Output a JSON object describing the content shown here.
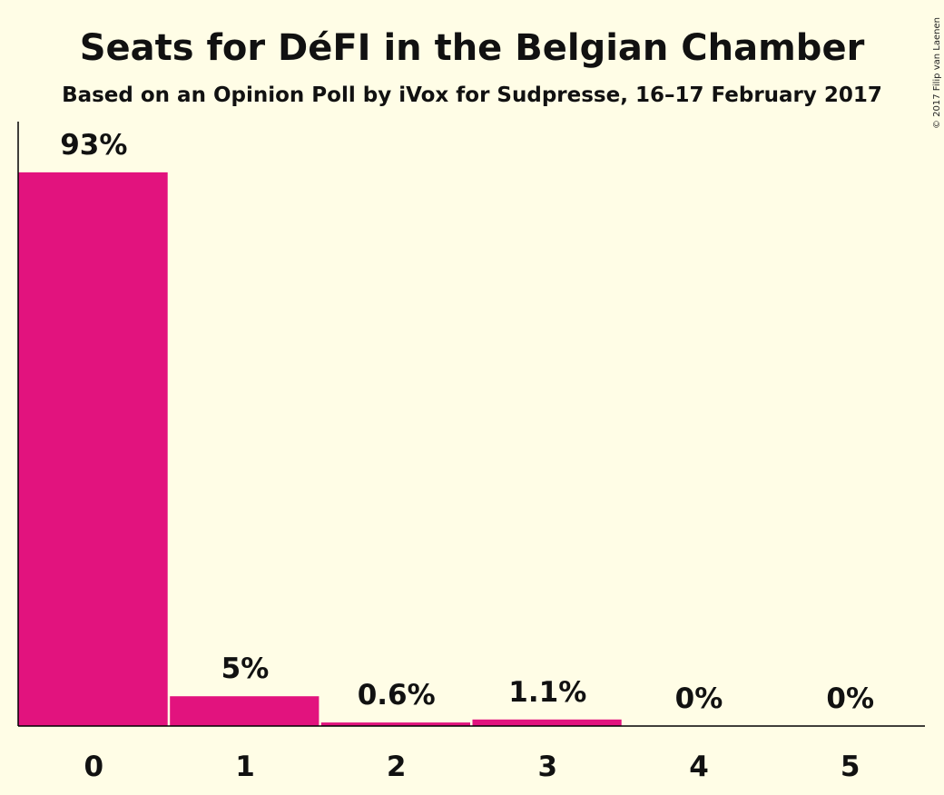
{
  "credit": "© 2017 Filip van Laenen",
  "colors": {
    "background": "#fffde6",
    "bar": "#e2137e",
    "axis": "#000000"
  },
  "chart_data": {
    "type": "bar",
    "title": "Seats for DéFI in the Belgian Chamber",
    "subtitle": "Based on an Opinion Poll by iVox for Sudpresse, 16–17 February 2017",
    "xlabel": "",
    "ylabel": "",
    "categories": [
      "0",
      "1",
      "2",
      "3",
      "4",
      "5"
    ],
    "values": [
      93,
      5,
      0.6,
      1.1,
      0,
      0
    ],
    "labels": [
      "93%",
      "5%",
      "0.6%",
      "1.1%",
      "0%",
      "0%"
    ],
    "ylim": [
      0,
      100
    ],
    "grid": false,
    "legend": "none"
  }
}
